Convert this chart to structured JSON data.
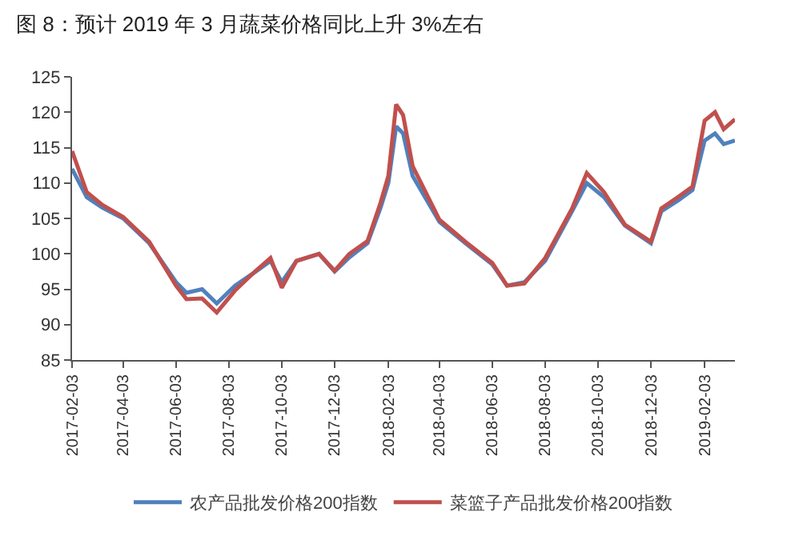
{
  "chart_data": {
    "type": "line",
    "title": "图 8：预计 2019 年 3 月蔬菜价格同比上升 3%左右",
    "x": [
      "2017-02-03",
      "2017-02-20",
      "2017-03-10",
      "2017-04-03",
      "2017-05-03",
      "2017-06-03",
      "2017-06-15",
      "2017-07-03",
      "2017-07-20",
      "2017-08-10",
      "2017-09-03",
      "2017-09-20",
      "2017-10-03",
      "2017-10-20",
      "2017-11-15",
      "2017-12-03",
      "2017-12-20",
      "2018-01-10",
      "2018-01-25",
      "2018-02-03",
      "2018-02-12",
      "2018-02-20",
      "2018-03-03",
      "2018-04-03",
      "2018-05-03",
      "2018-06-03",
      "2018-06-20",
      "2018-07-10",
      "2018-08-03",
      "2018-09-03",
      "2018-09-20",
      "2018-10-10",
      "2018-11-03",
      "2018-12-03",
      "2018-12-15",
      "2019-01-03",
      "2019-01-20",
      "2019-02-03",
      "2019-02-15",
      "2019-02-25",
      "2019-03-10"
    ],
    "series": [
      {
        "name": "农产品批发价格200指数",
        "color": "#4f81bd",
        "values": [
          112,
          108,
          106.5,
          105,
          101.5,
          96,
          94.5,
          95,
          93,
          95.5,
          97.5,
          99,
          96,
          99,
          100,
          97.5,
          99.5,
          101.5,
          106.5,
          110,
          118,
          117,
          111,
          104.5,
          101.5,
          98.5,
          95.5,
          96,
          99,
          106,
          110,
          108,
          104,
          101.5,
          106,
          107.5,
          109,
          116,
          117,
          115.5,
          116
        ]
      },
      {
        "name": "菜篮子产品批发价格200指数",
        "color": "#c0504d",
        "values": [
          114.5,
          108.7,
          106.9,
          105.2,
          101.7,
          95.5,
          93.6,
          93.7,
          91.7,
          94.8,
          97.6,
          99.4,
          95.2,
          99,
          100,
          97.6,
          100,
          101.8,
          107.2,
          111,
          121.1,
          119.6,
          112.4,
          104.8,
          101.7,
          98.7,
          95.5,
          95.8,
          99.4,
          106.4,
          111.4,
          108.7,
          104.1,
          101.7,
          106.4,
          108,
          109.5,
          118.8,
          120,
          117.6,
          119
        ]
      }
    ],
    "xlim": [
      "2017-02-03",
      "2019-03-10"
    ],
    "xticks": [
      "2017-02-03",
      "2017-04-03",
      "2017-06-03",
      "2017-08-03",
      "2017-10-03",
      "2017-12-03",
      "2018-02-03",
      "2018-04-03",
      "2018-06-03",
      "2018-08-03",
      "2018-10-03",
      "2018-12-03",
      "2019-02-03"
    ],
    "ylim": [
      85,
      125
    ],
    "yticks": [
      85,
      90,
      95,
      100,
      105,
      110,
      115,
      120,
      125
    ],
    "grid": false,
    "legend": "bottom",
    "line_style": "solid",
    "marker": "none"
  }
}
